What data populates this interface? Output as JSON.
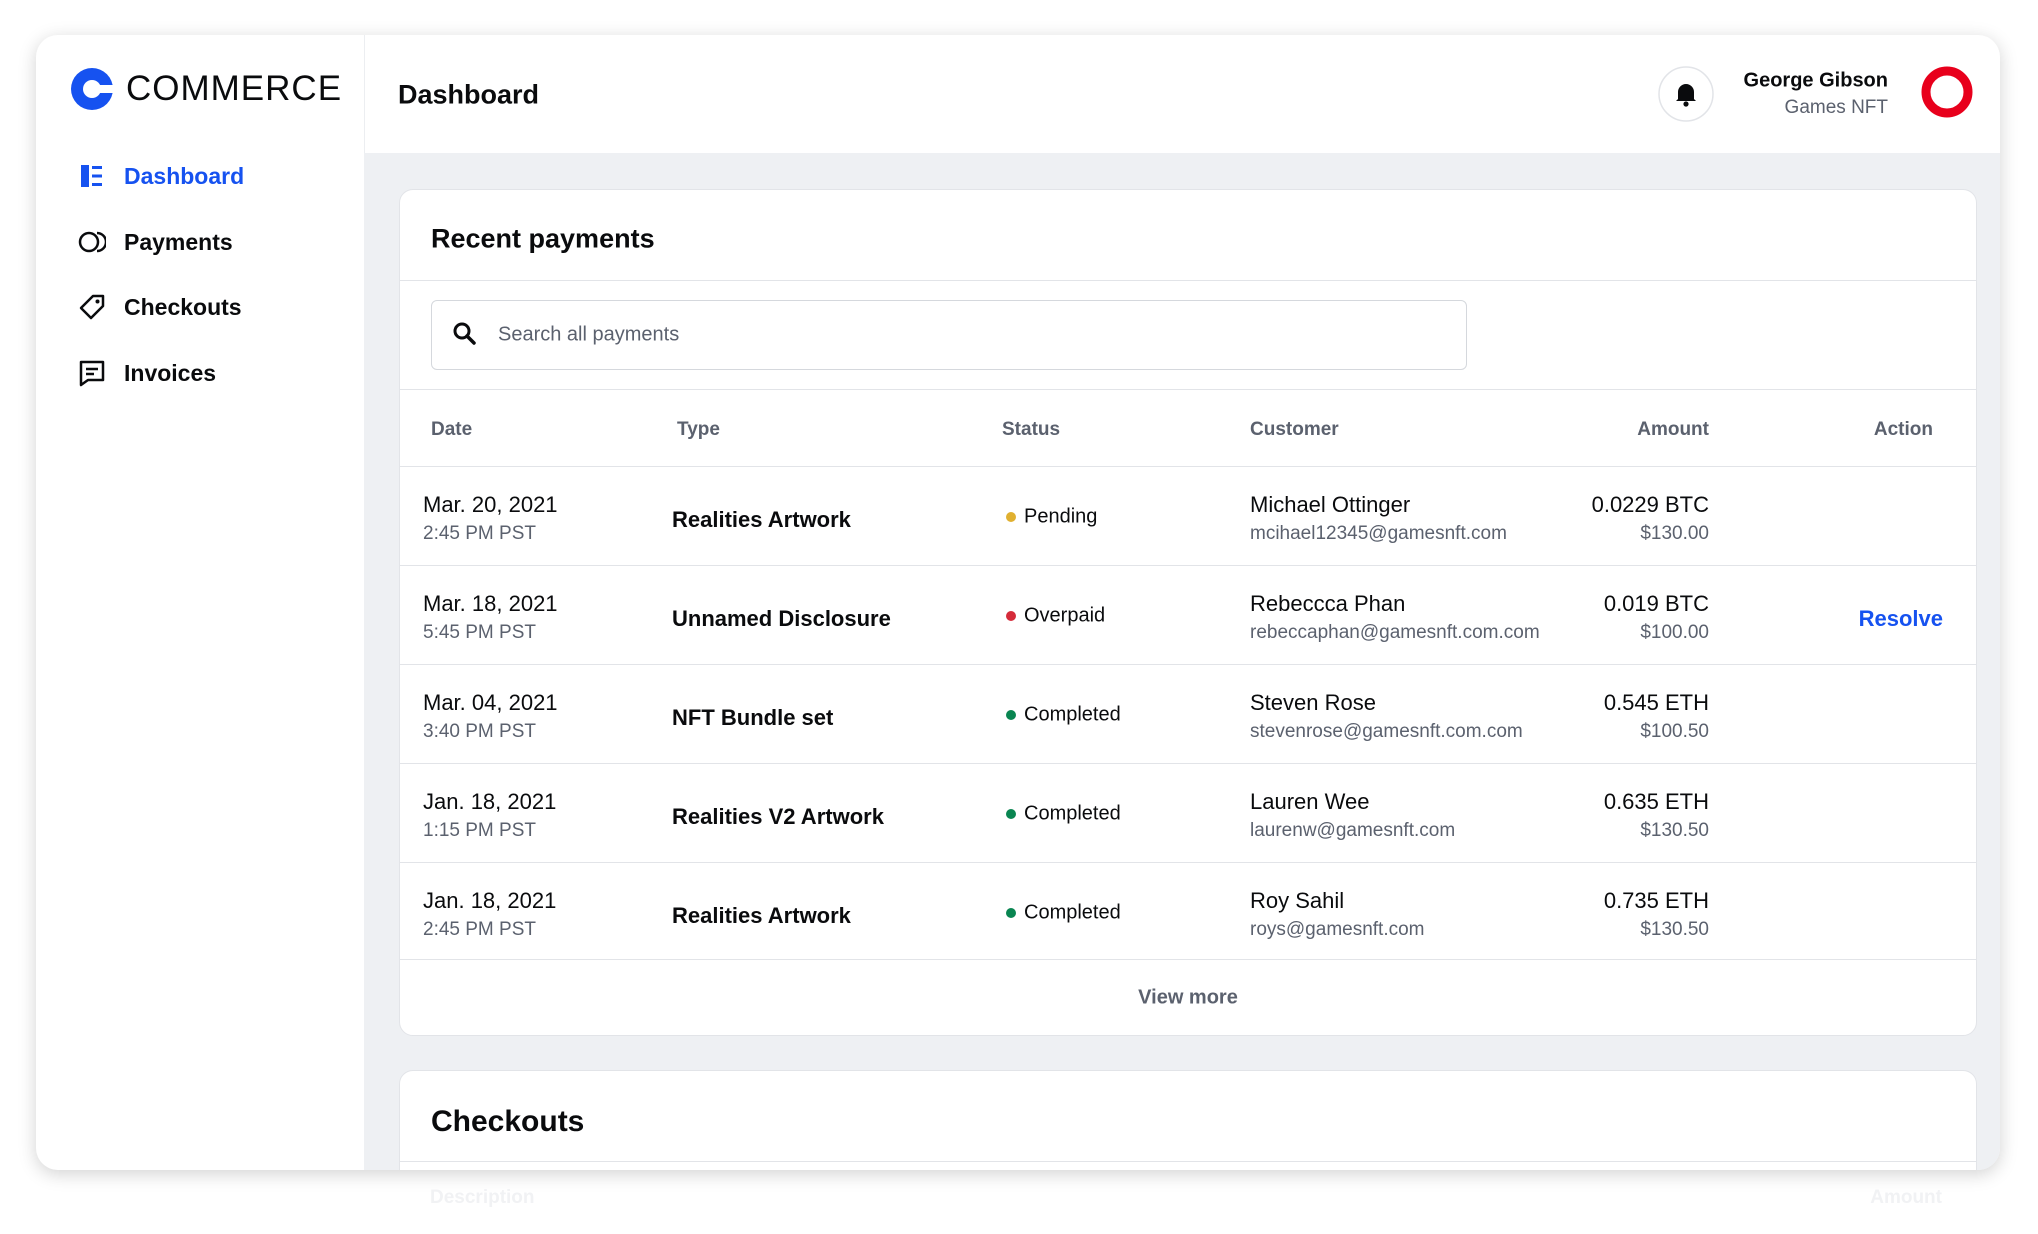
{
  "brand": "COMMERCE",
  "nav": [
    "Dashboard",
    "Payments",
    "Checkouts",
    "Invoices"
  ],
  "header": {
    "title": "Dashboard",
    "user_name": "George Gibson",
    "user_org": "Games NFT"
  },
  "recent_payments": {
    "title": "Recent payments",
    "search_placeholder": "Search all payments",
    "columns": [
      "Date",
      "Type",
      "Status",
      "Customer",
      "Amount",
      "Action"
    ],
    "rows": [
      {
        "date": "Mar. 20, 2021",
        "time": "2:45 PM PST",
        "type": "Realities Artwork",
        "status": "Pending",
        "status_color": "#e0b030",
        "customer": "Michael Ottinger",
        "email": "mcihael12345@gamesnft.com",
        "amount_crypto": "0.0229 BTC",
        "amount_usd": "$130.00"
      },
      {
        "date": "Mar. 18, 2021",
        "time": "5:45 PM PST",
        "type": "Unnamed Disclosure",
        "status": "Overpaid",
        "status_color": "#d52b3a",
        "customer": "Rebeccca Phan",
        "email": "rebeccaphan@gamesnft.com.com",
        "amount_crypto": "0.019 BTC",
        "amount_usd": "$100.00",
        "action": "Resolve"
      },
      {
        "date": "Mar. 04, 2021",
        "time": "3:40 PM PST",
        "type": "NFT Bundle set",
        "status": "Completed",
        "status_color": "#098551",
        "customer": "Steven Rose",
        "email": "stevenrose@gamesnft.com.com",
        "amount_crypto": "0.545 ETH",
        "amount_usd": "$100.50"
      },
      {
        "date": "Jan. 18, 2021",
        "time": "1:15 PM PST",
        "type": "Realities V2 Artwork",
        "status": "Completed",
        "status_color": "#098551",
        "customer": "Lauren Wee",
        "email": "laurenw@gamesnft.com",
        "amount_crypto": "0.635 ETH",
        "amount_usd": "$130.50"
      },
      {
        "date": "Jan. 18, 2021",
        "time": "2:45 PM PST",
        "type": "Realities Artwork",
        "status": "Completed",
        "status_color": "#098551",
        "customer": "Roy Sahil",
        "email": "roys@gamesnft.com",
        "amount_crypto": "0.735 ETH",
        "amount_usd": "$130.50"
      }
    ],
    "view_more": "View more"
  },
  "checkouts": {
    "title": "Checkouts",
    "columns": [
      "Description",
      "Amount"
    ]
  }
}
